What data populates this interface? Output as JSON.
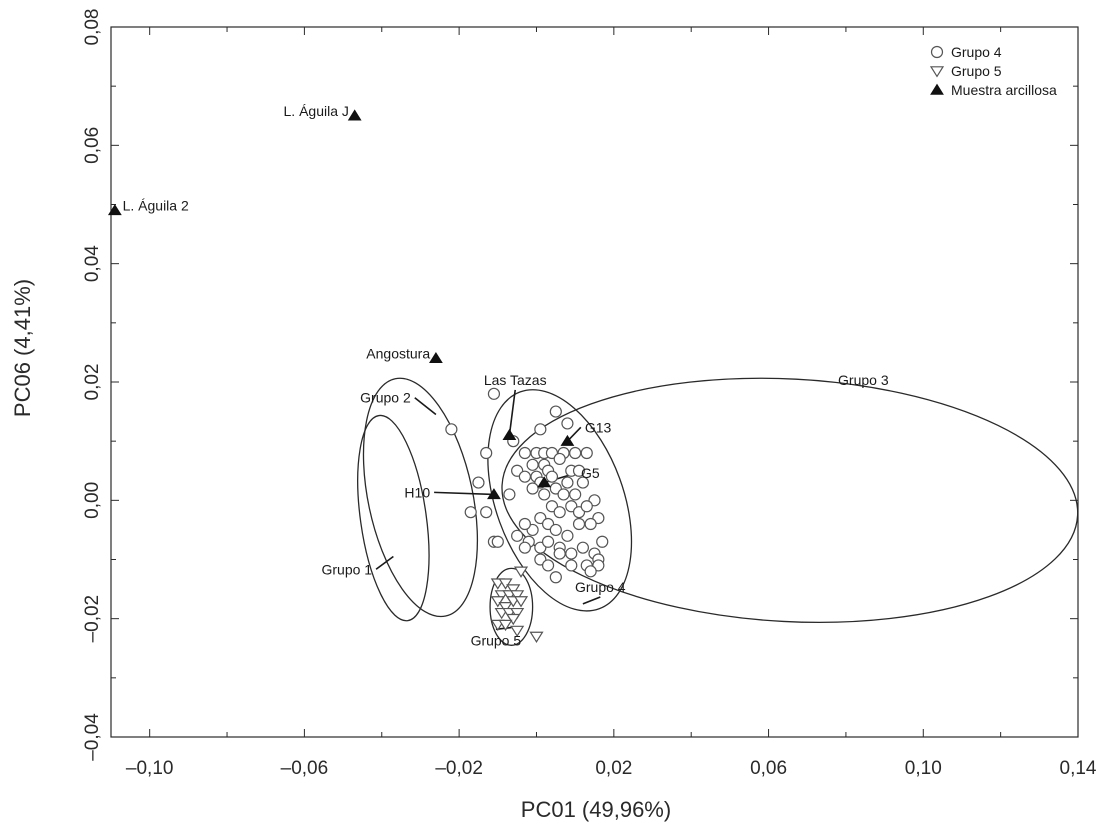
{
  "chart_data": {
    "type": "scatter",
    "xlabel": "PC01 (49,96%)",
    "ylabel": "PC06 (4,41%)",
    "xlim": [
      -0.11,
      0.14
    ],
    "ylim": [
      -0.04,
      0.08
    ],
    "x_ticks": [
      -0.1,
      -0.06,
      -0.02,
      0.02,
      0.06,
      0.1,
      0.14
    ],
    "x_tick_labels": [
      "–0,10",
      "–0,06",
      "–0,02",
      "0,02",
      "0,06",
      "0,10",
      "0,14"
    ],
    "y_ticks": [
      -0.04,
      -0.02,
      0.0,
      0.02,
      0.04,
      0.06,
      0.08
    ],
    "y_tick_labels": [
      "–0,04",
      "–0,02",
      "0,00",
      "0,02",
      "0,04",
      "0,06",
      "0,08"
    ],
    "grid": false,
    "legend_position": "top-right",
    "series": [
      {
        "name": "Grupo 4",
        "marker": "circle-open",
        "points": [
          [
            -0.011,
            0.018
          ],
          [
            -0.022,
            0.012
          ],
          [
            -0.013,
            0.008
          ],
          [
            -0.006,
            0.01
          ],
          [
            0.001,
            0.012
          ],
          [
            0.005,
            0.015
          ],
          [
            0.008,
            0.013
          ],
          [
            -0.003,
            0.008
          ],
          [
            0.0,
            0.008
          ],
          [
            0.002,
            0.008
          ],
          [
            0.004,
            0.008
          ],
          [
            0.007,
            0.008
          ],
          [
            0.01,
            0.008
          ],
          [
            0.013,
            0.008
          ],
          [
            -0.005,
            0.005
          ],
          [
            -0.001,
            0.006
          ],
          [
            0.002,
            0.006
          ],
          [
            0.003,
            0.005
          ],
          [
            0.006,
            0.007
          ],
          [
            0.009,
            0.005
          ],
          [
            0.011,
            0.005
          ],
          [
            -0.003,
            0.004
          ],
          [
            0.0,
            0.004
          ],
          [
            0.001,
            0.003
          ],
          [
            0.004,
            0.004
          ],
          [
            0.008,
            0.003
          ],
          [
            0.012,
            0.003
          ],
          [
            -0.001,
            0.002
          ],
          [
            0.002,
            0.001
          ],
          [
            0.005,
            0.002
          ],
          [
            0.007,
            0.001
          ],
          [
            0.01,
            0.001
          ],
          [
            -0.015,
            0.003
          ],
          [
            -0.007,
            0.001
          ],
          [
            0.015,
            0.0
          ],
          [
            0.016,
            -0.003
          ],
          [
            0.004,
            -0.001
          ],
          [
            0.006,
            -0.002
          ],
          [
            0.009,
            -0.001
          ],
          [
            0.011,
            -0.002
          ],
          [
            0.013,
            -0.001
          ],
          [
            0.001,
            -0.003
          ],
          [
            0.003,
            -0.004
          ],
          [
            -0.001,
            -0.005
          ],
          [
            0.005,
            -0.005
          ],
          [
            0.008,
            -0.006
          ],
          [
            0.011,
            -0.004
          ],
          [
            0.014,
            -0.004
          ],
          [
            -0.017,
            -0.002
          ],
          [
            -0.013,
            -0.002
          ],
          [
            -0.011,
            -0.007
          ],
          [
            -0.01,
            -0.007
          ],
          [
            -0.005,
            -0.006
          ],
          [
            -0.003,
            -0.004
          ],
          [
            -0.002,
            -0.007
          ],
          [
            0.001,
            -0.008
          ],
          [
            0.003,
            -0.007
          ],
          [
            0.006,
            -0.008
          ],
          [
            0.009,
            -0.009
          ],
          [
            0.012,
            -0.008
          ],
          [
            0.017,
            -0.007
          ],
          [
            -0.003,
            -0.008
          ],
          [
            0.001,
            -0.01
          ],
          [
            0.003,
            -0.011
          ],
          [
            0.006,
            -0.009
          ],
          [
            0.009,
            -0.011
          ],
          [
            0.013,
            -0.011
          ],
          [
            0.015,
            -0.009
          ],
          [
            0.016,
            -0.01
          ],
          [
            0.016,
            -0.011
          ],
          [
            0.014,
            -0.012
          ],
          [
            0.005,
            -0.013
          ]
        ]
      },
      {
        "name": "Grupo 5",
        "marker": "triangle-down-open",
        "points": [
          [
            -0.004,
            -0.012
          ],
          [
            -0.01,
            -0.014
          ],
          [
            -0.008,
            -0.014
          ],
          [
            -0.006,
            -0.015
          ],
          [
            -0.009,
            -0.016
          ],
          [
            -0.007,
            -0.016
          ],
          [
            -0.005,
            -0.016
          ],
          [
            -0.01,
            -0.017
          ],
          [
            -0.008,
            -0.018
          ],
          [
            -0.006,
            -0.017
          ],
          [
            -0.004,
            -0.017
          ],
          [
            -0.009,
            -0.019
          ],
          [
            -0.007,
            -0.019
          ],
          [
            -0.005,
            -0.019
          ],
          [
            -0.006,
            -0.02
          ],
          [
            -0.01,
            -0.021
          ],
          [
            -0.008,
            -0.021
          ],
          [
            -0.005,
            -0.022
          ],
          [
            0.0,
            -0.023
          ]
        ]
      },
      {
        "name": "Muestra arcillosa",
        "marker": "triangle-up-filled",
        "points": [
          [
            -0.047,
            0.065
          ],
          [
            -0.109,
            0.049
          ],
          [
            -0.026,
            0.024
          ],
          [
            -0.007,
            0.011
          ],
          [
            0.008,
            0.01
          ],
          [
            0.002,
            0.003
          ],
          [
            -0.011,
            0.001
          ]
        ]
      }
    ],
    "ellipses": [
      {
        "label": "Grupo 1",
        "cx": -0.037,
        "cy": -0.003,
        "rx": 0.0085,
        "ry": 0.0175,
        "angle": -8
      },
      {
        "label": "Grupo 2",
        "cx": -0.03,
        "cy": 0.0005,
        "rx": 0.0135,
        "ry": 0.0205,
        "angle": -12
      },
      {
        "label": "Grupo 3",
        "cx": 0.0655,
        "cy": 0.0,
        "rx": 0.0745,
        "ry": 0.0205,
        "angle": 3
      },
      {
        "label": "Grupo 4",
        "cx": 0.006,
        "cy": 0.0,
        "rx": 0.0165,
        "ry": 0.0195,
        "angle": -20
      },
      {
        "label": "Grupo 5",
        "cx": -0.0065,
        "cy": -0.018,
        "rx": 0.0055,
        "ry": 0.0065,
        "angle": 0
      }
    ],
    "annotations": [
      {
        "text": "L. Águila J",
        "x": -0.0485,
        "y": 0.065,
        "anchor": "end"
      },
      {
        "text": "L. Águila 2",
        "x": -0.107,
        "y": 0.049,
        "anchor": "start"
      },
      {
        "text": "Angostura",
        "x": -0.0275,
        "y": 0.024,
        "anchor": "end"
      },
      {
        "text": "Las Tazas",
        "x": -0.0055,
        "y": 0.0195,
        "anchor": "middle",
        "line_to": [
          -0.007,
          0.011
        ]
      },
      {
        "text": "G13",
        "x": 0.0125,
        "y": 0.0115,
        "anchor": "start",
        "line_to": [
          0.008,
          0.01
        ]
      },
      {
        "text": "G5",
        "x": 0.0115,
        "y": 0.0038,
        "anchor": "start",
        "line_to": [
          0.002,
          0.003
        ]
      },
      {
        "text": "H10",
        "x": -0.0275,
        "y": 0.0005,
        "anchor": "end",
        "line_to": [
          -0.011,
          0.001
        ]
      },
      {
        "text": "Grupo 1",
        "x": -0.0425,
        "y": -0.0125,
        "anchor": "end",
        "line_to": [
          -0.037,
          -0.0095
        ]
      },
      {
        "text": "Grupo 2",
        "x": -0.0325,
        "y": 0.0165,
        "anchor": "end",
        "line_to": [
          -0.026,
          0.0145
        ]
      },
      {
        "text": "Grupo 3",
        "x": 0.0845,
        "y": 0.0195,
        "anchor": "middle"
      },
      {
        "text": "Grupo 4",
        "x": 0.0165,
        "y": -0.0155,
        "anchor": "middle",
        "line_to": [
          0.012,
          -0.0175
        ]
      },
      {
        "text": "Grupo 5",
        "x": -0.0105,
        "y": -0.0245,
        "anchor": "middle",
        "line_to": [
          -0.0065,
          -0.0215
        ]
      }
    ]
  }
}
